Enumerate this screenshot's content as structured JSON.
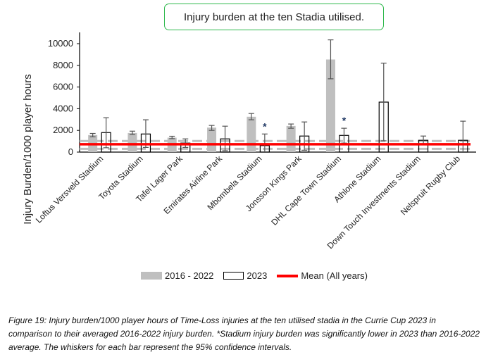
{
  "chart_data": {
    "type": "bar",
    "title": "Injury burden at the ten Stadia utilised.",
    "ylabel": "Injury Burden/1000 player hours",
    "xlabel": "",
    "ylim": [
      0,
      11000
    ],
    "yticks": [
      0,
      2000,
      4000,
      6000,
      8000,
      10000
    ],
    "grid": false,
    "legend_position": "bottom",
    "categories": [
      "Loftus Versveld Stadium",
      "Toyota Stadium",
      "Tafel Lager Park",
      "Emirates Airline Park",
      "Mbombela Stadium",
      "Jonsson Kings Park",
      "DHL Cape Town Stadium",
      "Athlone Stadium",
      "Down Touch Investments Stadium",
      "Nelspruit Rugby Club"
    ],
    "series": [
      {
        "name": "2016 - 2022",
        "color": "#bfbfbf",
        "values": [
          1570,
          1760,
          1330,
          2260,
          3260,
          2410,
          8540,
          null,
          null,
          null
        ],
        "ci_low": [
          1410,
          1630,
          1240,
          2000,
          2980,
          2200,
          6760,
          null,
          null,
          null
        ],
        "ci_high": [
          1720,
          1930,
          1460,
          2460,
          3560,
          2590,
          10350,
          null,
          null,
          null
        ]
      },
      {
        "name": "2023",
        "color": "#ffffff",
        "values": [
          1800,
          1670,
          830,
          1220,
          600,
          1480,
          1540,
          4610,
          1090,
          1090
        ],
        "ci_low": [
          400,
          430,
          430,
          130,
          0,
          170,
          830,
          1040,
          700,
          0
        ],
        "ci_high": [
          3170,
          2980,
          1220,
          2390,
          1670,
          2780,
          2200,
          8200,
          1480,
          2850
        ],
        "significant": [
          false,
          false,
          false,
          false,
          true,
          false,
          true,
          false,
          false,
          false
        ]
      }
    ],
    "mean": {
      "name": "Mean (All years)",
      "value": 720,
      "ci_low": 300,
      "ci_high": 1020,
      "color": "#ff0000"
    },
    "significance_marker": "*"
  },
  "caption": "Figure 19: Injury burden/1000 player hours of Time-Loss injuries at the ten utilised stadia in the Currie Cup 2023 in comparison to their averaged 2016-2022 injury burden. *Stadium injury burden was significantly lower in 2023 than 2016-2022 average. The whiskers for each bar represent the 95% confidence intervals."
}
